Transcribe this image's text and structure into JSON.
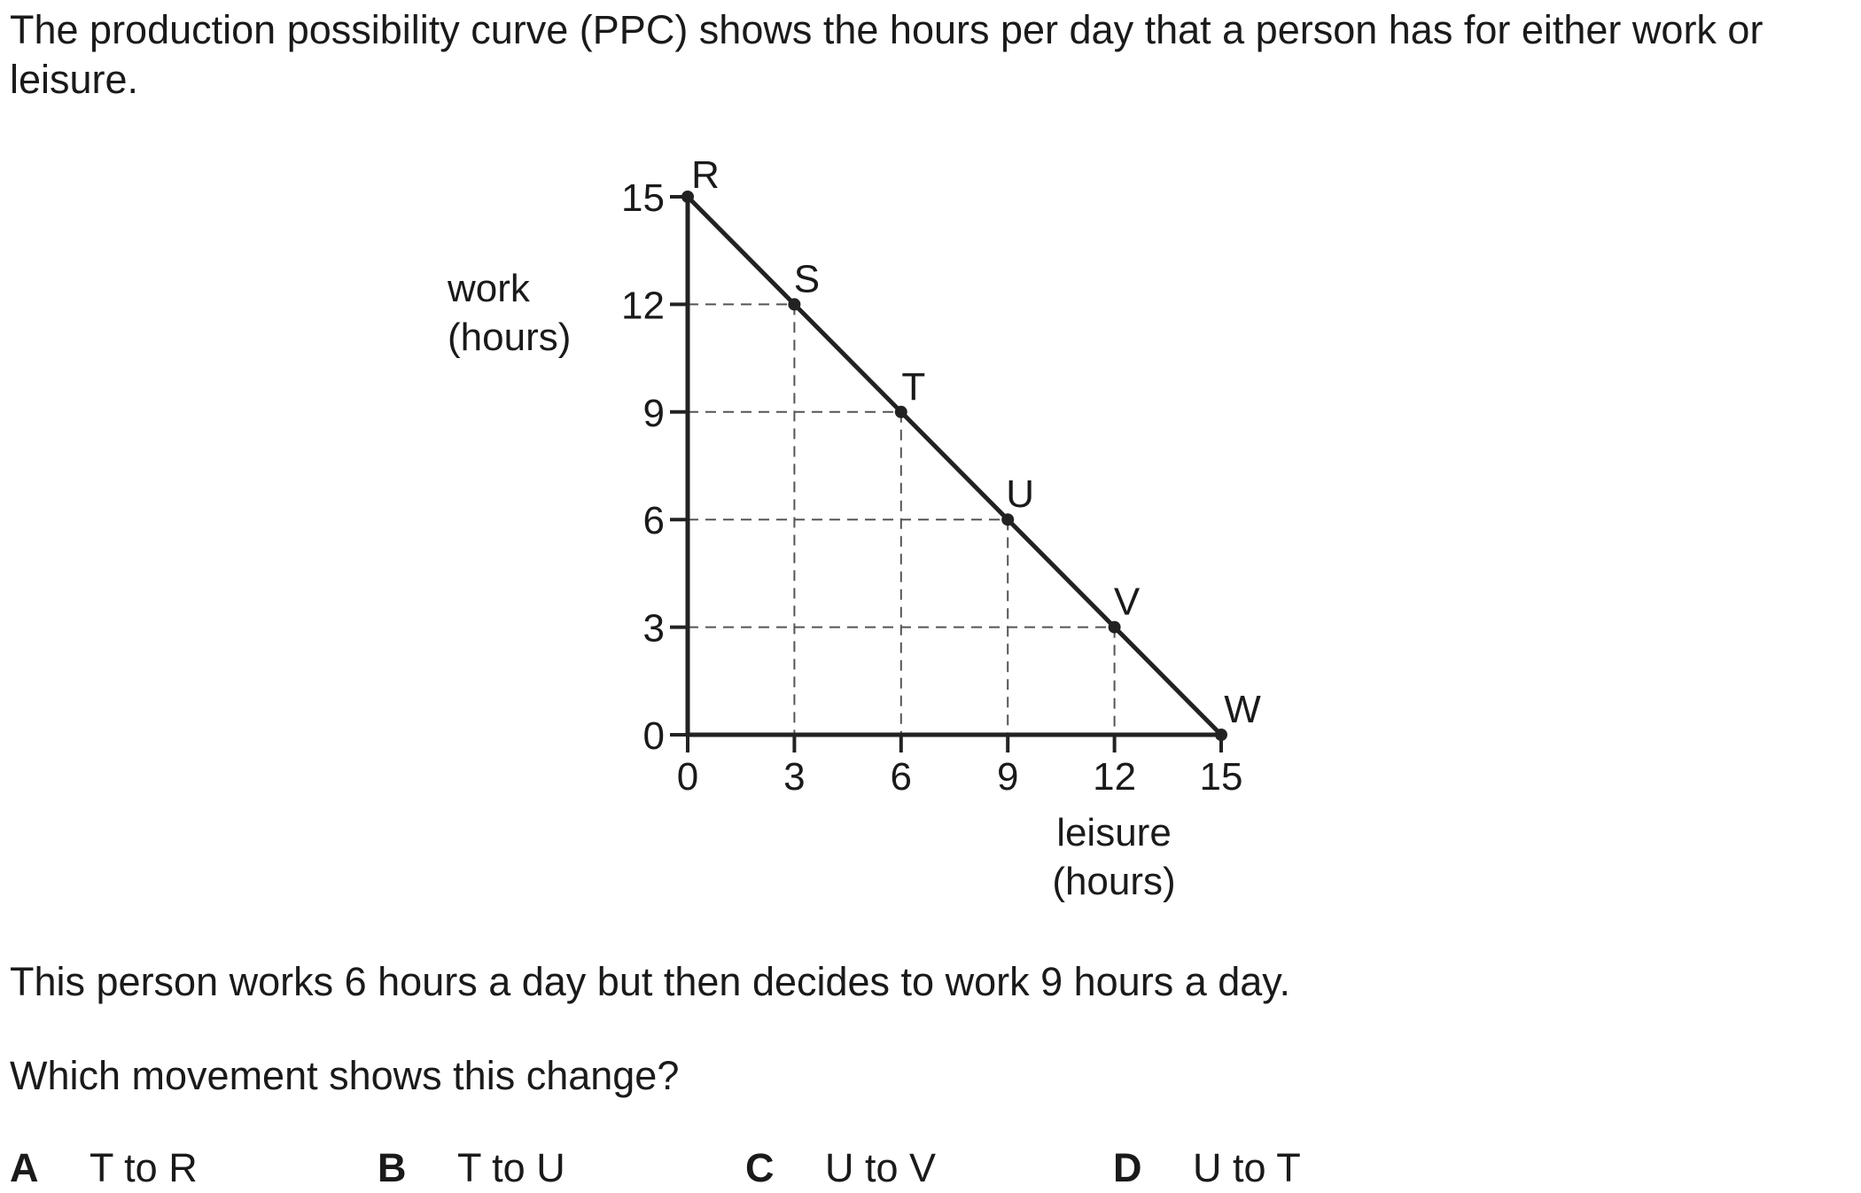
{
  "question": {
    "intro": "The production possibility curve (PPC) shows the hours per day that a person has for either work or leisure.",
    "statement": "This person works 6 hours a day but then decides to work 9 hours a day.",
    "prompt": "Which movement shows this change?",
    "options": [
      {
        "letter": "A",
        "text": "T to R"
      },
      {
        "letter": "B",
        "text": "T to U"
      },
      {
        "letter": "C",
        "text": "U to V"
      },
      {
        "letter": "D",
        "text": "U to T"
      }
    ]
  },
  "chart_data": {
    "type": "line",
    "title": "",
    "xlabel": [
      "leisure",
      "(hours)"
    ],
    "ylabel": [
      "work",
      "(hours)"
    ],
    "xlim": [
      0,
      15
    ],
    "ylim": [
      0,
      15
    ],
    "xticks": [
      0,
      3,
      6,
      9,
      12,
      15
    ],
    "yticks": [
      0,
      3,
      6,
      9,
      12,
      15
    ],
    "grid": "dashed guide lines to each point",
    "points": [
      {
        "label": "R",
        "x": 0,
        "y": 15
      },
      {
        "label": "S",
        "x": 3,
        "y": 12
      },
      {
        "label": "T",
        "x": 6,
        "y": 9
      },
      {
        "label": "U",
        "x": 9,
        "y": 6
      },
      {
        "label": "V",
        "x": 12,
        "y": 3
      },
      {
        "label": "W",
        "x": 15,
        "y": 0
      }
    ],
    "line_color": "#222222"
  }
}
